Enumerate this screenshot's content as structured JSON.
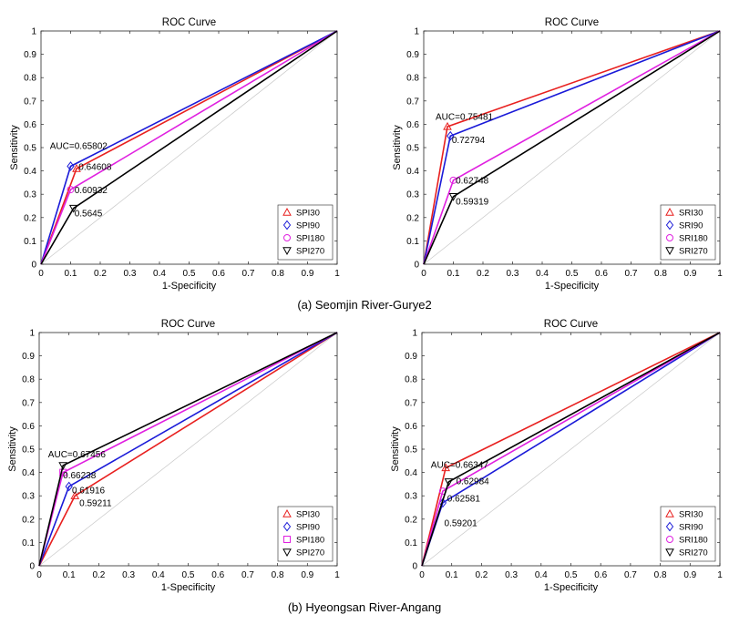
{
  "captions": {
    "a": "(a) Seomjin River-Gurye2",
    "b": "(b) Hyeongsan River-Angang"
  },
  "chart_data": [
    {
      "type": "line",
      "title": "ROC Curve",
      "xlabel": "1-Specificity",
      "ylabel": "Sensitivity",
      "xlim": [
        0,
        1
      ],
      "ylim": [
        0,
        1
      ],
      "ticks": [
        "0",
        "0.1",
        "0.2",
        "0.3",
        "0.4",
        "0.5",
        "0.6",
        "0.7",
        "0.8",
        "0.9",
        "1"
      ],
      "diagonal": true,
      "legend_position": "bottom-right",
      "series": [
        {
          "name": "SPI30",
          "color": "#e8201f",
          "marker": "triangle-up",
          "points": [
            [
              0,
              0
            ],
            [
              0.12,
              0.41
            ],
            [
              1,
              1
            ]
          ]
        },
        {
          "name": "SPI90",
          "color": "#1a1ad8",
          "marker": "diamond",
          "points": [
            [
              0,
              0
            ],
            [
              0.1,
              0.42
            ],
            [
              1,
              1
            ]
          ]
        },
        {
          "name": "SPI180",
          "color": "#e020e0",
          "marker": "circle",
          "points": [
            [
              0,
              0
            ],
            [
              0.1,
              0.32
            ],
            [
              1,
              1
            ]
          ]
        },
        {
          "name": "SPI270",
          "color": "#000000",
          "marker": "triangle-down",
          "points": [
            [
              0,
              0
            ],
            [
              0.11,
              0.24
            ],
            [
              1,
              1
            ]
          ]
        }
      ],
      "annotations": [
        {
          "text": "AUC=0.65802",
          "x": 0.03,
          "y": 0.495
        },
        {
          "text": "0.64608",
          "x": 0.127,
          "y": 0.405
        },
        {
          "text": "0.60932",
          "x": 0.113,
          "y": 0.305
        },
        {
          "text": "0.5645",
          "x": 0.113,
          "y": 0.205
        }
      ]
    },
    {
      "type": "line",
      "title": "ROC Curve",
      "xlabel": "1-Specificity",
      "ylabel": "Sensitivity",
      "xlim": [
        0,
        1
      ],
      "ylim": [
        0,
        1
      ],
      "ticks": [
        "0",
        "0.1",
        "0.2",
        "0.3",
        "0.4",
        "0.5",
        "0.6",
        "0.7",
        "0.8",
        "0.9",
        "1"
      ],
      "diagonal": true,
      "legend_position": "bottom-right",
      "series": [
        {
          "name": "SRI30",
          "color": "#e8201f",
          "marker": "triangle-up",
          "points": [
            [
              0,
              0
            ],
            [
              0.08,
              0.59
            ],
            [
              1,
              1
            ]
          ]
        },
        {
          "name": "SRI90",
          "color": "#1a1ad8",
          "marker": "diamond",
          "points": [
            [
              0,
              0
            ],
            [
              0.09,
              0.55
            ],
            [
              1,
              1
            ]
          ]
        },
        {
          "name": "SRI180",
          "color": "#e020e0",
          "marker": "circle",
          "points": [
            [
              0,
              0
            ],
            [
              0.1,
              0.36
            ],
            [
              1,
              1
            ]
          ]
        },
        {
          "name": "SRI270",
          "color": "#000000",
          "marker": "triangle-down",
          "points": [
            [
              0,
              0
            ],
            [
              0.1,
              0.29
            ],
            [
              1,
              1
            ]
          ]
        }
      ],
      "annotations": [
        {
          "text": "AUC=0.75481",
          "x": 0.04,
          "y": 0.62
        },
        {
          "text": "0.72794",
          "x": 0.095,
          "y": 0.52
        },
        {
          "text": "0.62748",
          "x": 0.108,
          "y": 0.345
        },
        {
          "text": "0.59319",
          "x": 0.108,
          "y": 0.255
        }
      ]
    },
    {
      "type": "line",
      "title": "ROC Curve",
      "xlabel": "1-Specificity",
      "ylabel": "Sensitivity",
      "xlim": [
        0,
        1
      ],
      "ylim": [
        0,
        1
      ],
      "ticks": [
        "0",
        "0.1",
        "0.2",
        "0.3",
        "0.4",
        "0.5",
        "0.6",
        "0.7",
        "0.8",
        "0.9",
        "1"
      ],
      "diagonal": true,
      "legend_position": "bottom-right",
      "series": [
        {
          "name": "SPI30",
          "color": "#e8201f",
          "marker": "triangle-up",
          "points": [
            [
              0,
              0
            ],
            [
              0.12,
              0.3
            ],
            [
              1,
              1
            ]
          ]
        },
        {
          "name": "SPI90",
          "color": "#1a1ad8",
          "marker": "diamond",
          "points": [
            [
              0,
              0
            ],
            [
              0.1,
              0.34
            ],
            [
              1,
              1
            ]
          ]
        },
        {
          "name": "SPI180",
          "color": "#e020e0",
          "marker": "square",
          "points": [
            [
              0,
              0
            ],
            [
              0.08,
              0.4
            ],
            [
              1,
              1
            ]
          ]
        },
        {
          "name": "SPI270",
          "color": "#000000",
          "marker": "triangle-down",
          "points": [
            [
              0,
              0
            ],
            [
              0.08,
              0.43
            ],
            [
              1,
              1
            ]
          ]
        }
      ],
      "annotations": [
        {
          "text": "AUC=0.67456",
          "x": 0.03,
          "y": 0.465
        },
        {
          "text": "0.66238",
          "x": 0.08,
          "y": 0.375
        },
        {
          "text": "0.61916",
          "x": 0.11,
          "y": 0.31
        },
        {
          "text": "0.59211",
          "x": 0.135,
          "y": 0.255
        }
      ]
    },
    {
      "type": "line",
      "title": "ROC Curve",
      "xlabel": "1-Specificity",
      "ylabel": "Sensitivity",
      "xlim": [
        0,
        1
      ],
      "ylim": [
        0,
        1
      ],
      "ticks": [
        "0",
        "0.1",
        "0.2",
        "0.3",
        "0.4",
        "0.5",
        "0.6",
        "0.7",
        "0.8",
        "0.9",
        "1"
      ],
      "diagonal": true,
      "legend_position": "bottom-right",
      "series": [
        {
          "name": "SRI30",
          "color": "#e8201f",
          "marker": "triangle-up",
          "points": [
            [
              0,
              0
            ],
            [
              0.08,
              0.42
            ],
            [
              1,
              1
            ]
          ]
        },
        {
          "name": "SRI90",
          "color": "#1a1ad8",
          "marker": "diamond",
          "points": [
            [
              0,
              0
            ],
            [
              0.07,
              0.27
            ],
            [
              1,
              1
            ]
          ]
        },
        {
          "name": "SRI180",
          "color": "#e020e0",
          "marker": "circle",
          "points": [
            [
              0,
              0
            ],
            [
              0.07,
              0.32
            ],
            [
              1,
              1
            ]
          ]
        },
        {
          "name": "SRI270",
          "color": "#000000",
          "marker": "triangle-down",
          "points": [
            [
              0,
              0
            ],
            [
              0.09,
              0.36
            ],
            [
              1,
              1
            ]
          ]
        }
      ],
      "annotations": [
        {
          "text": "AUC=0.66347",
          "x": 0.03,
          "y": 0.42
        },
        {
          "text": "0.62984",
          "x": 0.115,
          "y": 0.35
        },
        {
          "text": "0.62581",
          "x": 0.085,
          "y": 0.275
        },
        {
          "text": "0.59201",
          "x": 0.075,
          "y": 0.17
        }
      ]
    }
  ]
}
